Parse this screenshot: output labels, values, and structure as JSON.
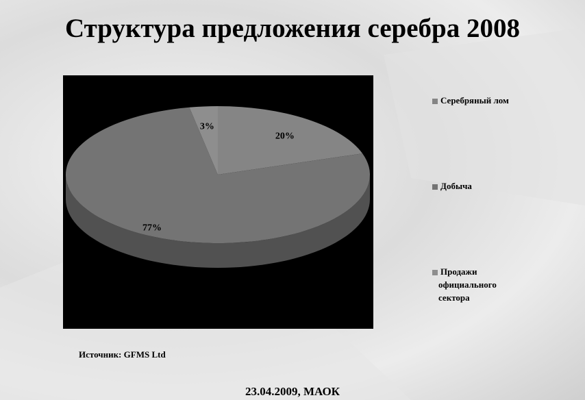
{
  "chart_data": {
    "type": "pie",
    "title": "Структура предложения серебра 2008",
    "categories": [
      "Серебряный лом",
      "Добыча",
      "Продажи официального сектора"
    ],
    "values": [
      20,
      77,
      3
    ],
    "value_labels": [
      "20%",
      "77%",
      "3%"
    ],
    "colors": [
      "#858585",
      "#747474",
      "#8e8e8e"
    ],
    "source": "Источник: GFMS Ltd",
    "footer": "23.04.2009, МАОК"
  }
}
